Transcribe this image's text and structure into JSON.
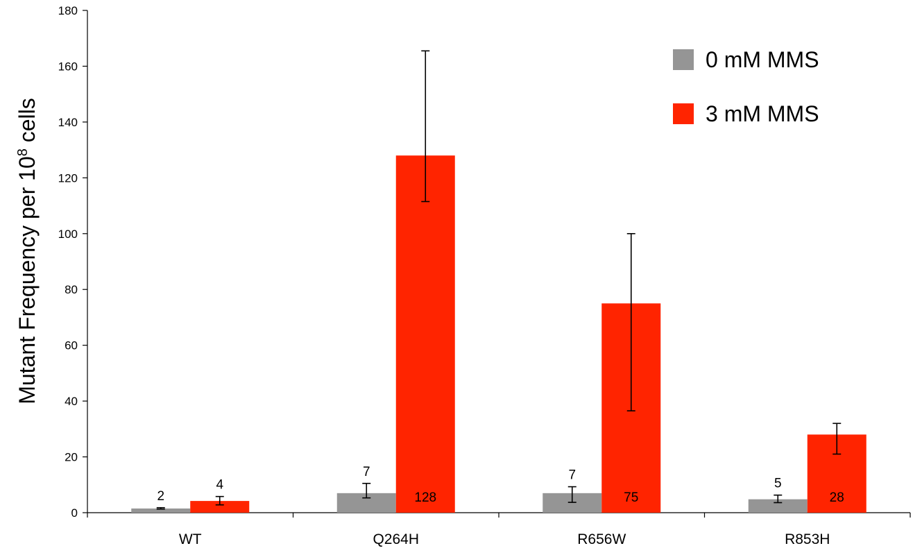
{
  "chart_data": {
    "type": "bar",
    "categories": [
      "WT",
      "Q264H",
      "R656W",
      "R853H"
    ],
    "ylabel": {
      "prefix": "Mutant Frequency per 10",
      "superscript": "8",
      "suffix": " cells"
    },
    "ylim": [
      0,
      180
    ],
    "yticks": [
      0,
      20,
      40,
      60,
      80,
      100,
      120,
      140,
      160,
      180
    ],
    "grid": false,
    "legend_position": "top-right",
    "series": [
      {
        "name": "0 mM MMS",
        "color": "#959595",
        "values": [
          1.5,
          7,
          7,
          4.8
        ],
        "error_low": [
          1.3,
          5.3,
          3.7,
          3.6
        ],
        "error_high": [
          1.8,
          10.5,
          9.3,
          6.3
        ],
        "labels": [
          "2",
          "7",
          "7",
          "5"
        ],
        "label_position": [
          "above",
          "above",
          "above",
          "above"
        ]
      },
      {
        "name": "3 mM MMS",
        "color": "#ff2400",
        "values": [
          4.2,
          128,
          75,
          28
        ],
        "error_low": [
          2.8,
          111.5,
          36.5,
          21
        ],
        "error_high": [
          5.8,
          165.5,
          100,
          32
        ],
        "labels": [
          "4",
          "128",
          "75",
          "28"
        ],
        "label_position": [
          "above",
          "inside",
          "inside",
          "inside"
        ]
      }
    ]
  }
}
